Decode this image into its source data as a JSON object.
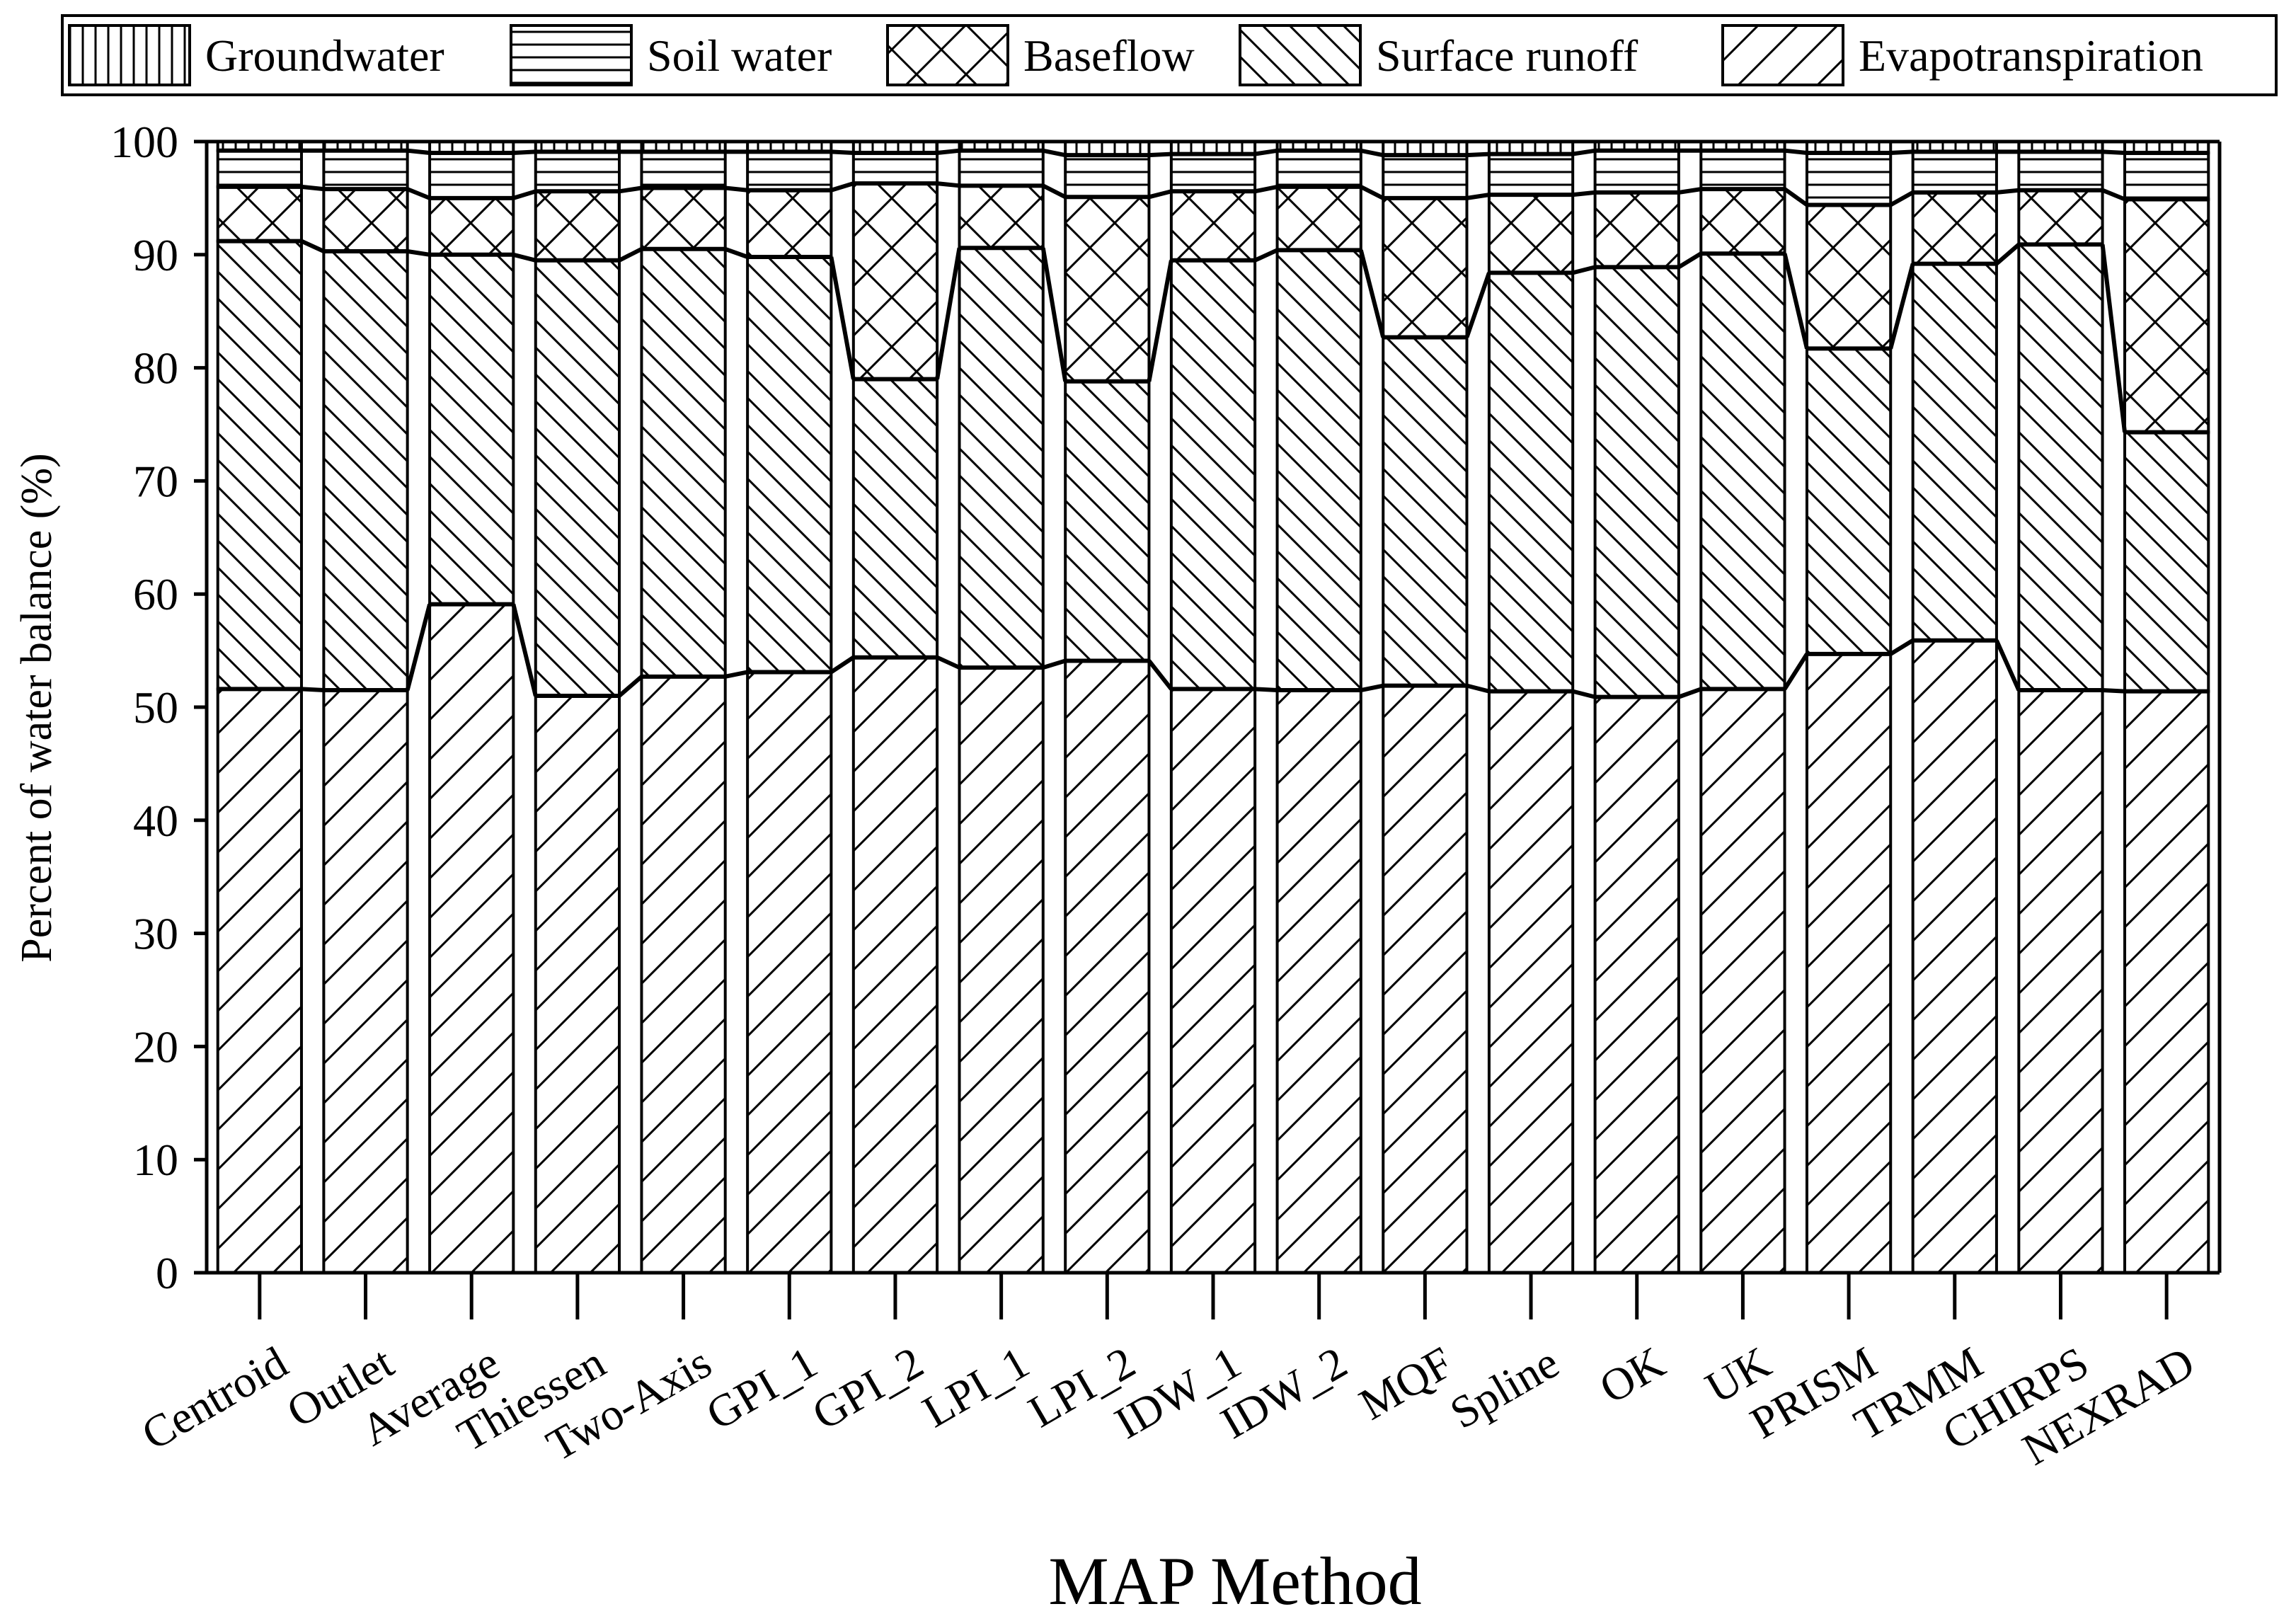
{
  "chart_data": {
    "type": "bar",
    "stacked": true,
    "title": "",
    "xlabel": "MAP Method",
    "ylabel": "Percent of water balance (%)",
    "ylim": [
      0,
      100
    ],
    "yticks": [
      0,
      10,
      20,
      30,
      40,
      50,
      60,
      70,
      80,
      90,
      100
    ],
    "grid": false,
    "legend_position": "top",
    "categories": [
      "Centroid",
      "Outlet",
      "Average",
      "Thiessen",
      "Two-Axis",
      "GPI_1",
      "GPI_2",
      "LPI_1",
      "LPI_2",
      "IDW_1",
      "IDW_2",
      "MQF",
      "Spline",
      "OK",
      "UK",
      "PRISM",
      "TRMM",
      "CHIRPS",
      "NEXRAD"
    ],
    "series": [
      {
        "name": "Evapotranspiration",
        "pattern": "diagonal-forward",
        "values": [
          51.6,
          51.5,
          59.1,
          51.0,
          52.7,
          53.1,
          54.4,
          53.5,
          54.1,
          51.6,
          51.5,
          51.9,
          51.4,
          50.9,
          51.6,
          54.7,
          55.9,
          51.5,
          51.4
        ]
      },
      {
        "name": "Surface runoff",
        "pattern": "diagonal-back",
        "values": [
          39.6,
          38.8,
          30.9,
          38.5,
          37.8,
          36.7,
          24.6,
          37.1,
          24.7,
          37.9,
          38.9,
          30.8,
          37.0,
          38.0,
          38.5,
          27.0,
          33.3,
          39.4,
          22.9
        ]
      },
      {
        "name": "Baseflow",
        "pattern": "crosshatch",
        "values": [
          4.8,
          5.5,
          5.0,
          6.1,
          5.4,
          5.9,
          17.3,
          5.5,
          16.3,
          6.1,
          5.6,
          12.3,
          6.9,
          6.6,
          5.7,
          12.7,
          6.3,
          4.8,
          20.6
        ]
      },
      {
        "name": "Soil water",
        "pattern": "horizontal",
        "values": [
          3.2,
          3.4,
          4.0,
          3.5,
          3.2,
          3.4,
          2.7,
          3.1,
          3.7,
          3.3,
          3.2,
          3.8,
          3.6,
          3.7,
          3.4,
          4.6,
          3.6,
          3.4,
          4.1
        ]
      },
      {
        "name": "Groundwater",
        "pattern": "vertical",
        "values": [
          0.8,
          0.8,
          1.0,
          0.9,
          0.9,
          0.9,
          1.0,
          0.8,
          1.2,
          1.1,
          0.8,
          1.2,
          1.1,
          0.8,
          0.8,
          1.0,
          0.9,
          0.9,
          1.0
        ]
      }
    ],
    "legend": [
      "Groundwater",
      "Soil water",
      "Baseflow",
      "Surface runoff",
      "Evapotranspiration"
    ]
  }
}
